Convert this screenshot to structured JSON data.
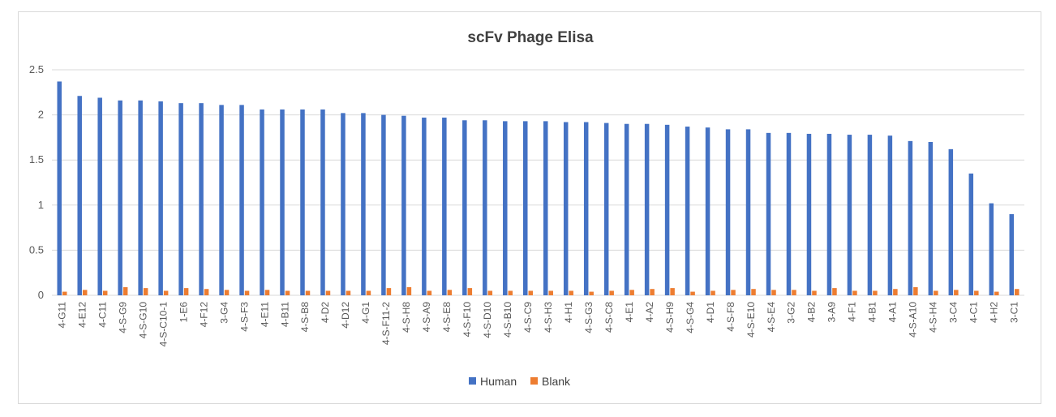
{
  "chart_data": {
    "type": "bar",
    "title": "scFv Phage Elisa",
    "xlabel": "",
    "ylabel": "",
    "ylim": [
      0,
      2.5
    ],
    "yticks": [
      "0",
      "0.5",
      "1",
      "1.5",
      "2",
      "2.5"
    ],
    "grid": true,
    "legend_position": "bottom",
    "categories": [
      "4-G11",
      "4-E12",
      "4-C11",
      "4-S-G9",
      "4-S-G10",
      "4-S-C10-1",
      "1-E6",
      "4-F12",
      "3-G4",
      "4-S-F3",
      "4-E11",
      "4-B11",
      "4-S-B8",
      "4-D2",
      "4-D12",
      "4-G1",
      "4-S-F11-2",
      "4-S-H8",
      "4-S-A9",
      "4-S-E8",
      "4-S-F10",
      "4-S-D10",
      "4-S-B10",
      "4-S-C9",
      "4-S-H3",
      "4-H1",
      "4-S-G3",
      "4-S-C8",
      "4-E1",
      "4-A2",
      "4-S-H9",
      "4-S-G4",
      "4-D1",
      "4-S-F8",
      "4-S-E10",
      "4-S-E4",
      "3-G2",
      "4-B2",
      "3-A9",
      "4-F1",
      "4-B1",
      "4-A1",
      "4-S-A10",
      "4-S-H4",
      "3-C4",
      "4-C1",
      "4-H2",
      "3-C1"
    ],
    "series": [
      {
        "name": "Human",
        "color": "#4472C4",
        "values": [
          2.37,
          2.21,
          2.19,
          2.16,
          2.16,
          2.15,
          2.13,
          2.13,
          2.11,
          2.11,
          2.06,
          2.06,
          2.06,
          2.06,
          2.02,
          2.02,
          2.0,
          1.99,
          1.97,
          1.97,
          1.94,
          1.94,
          1.93,
          1.93,
          1.93,
          1.92,
          1.92,
          1.91,
          1.9,
          1.9,
          1.89,
          1.87,
          1.86,
          1.84,
          1.84,
          1.8,
          1.8,
          1.79,
          1.79,
          1.78,
          1.78,
          1.77,
          1.71,
          1.7,
          1.62,
          1.35,
          1.02,
          0.9
        ]
      },
      {
        "name": "Blank",
        "color": "#ED7D31",
        "values": [
          0.04,
          0.06,
          0.05,
          0.09,
          0.08,
          0.05,
          0.08,
          0.07,
          0.06,
          0.05,
          0.06,
          0.05,
          0.05,
          0.05,
          0.05,
          0.05,
          0.08,
          0.09,
          0.05,
          0.06,
          0.08,
          0.05,
          0.05,
          0.05,
          0.05,
          0.05,
          0.04,
          0.05,
          0.06,
          0.07,
          0.08,
          0.04,
          0.05,
          0.06,
          0.07,
          0.06,
          0.06,
          0.05,
          0.08,
          0.05,
          0.05,
          0.07,
          0.09,
          0.05,
          0.06,
          0.05,
          0.04,
          0.07
        ]
      }
    ]
  }
}
